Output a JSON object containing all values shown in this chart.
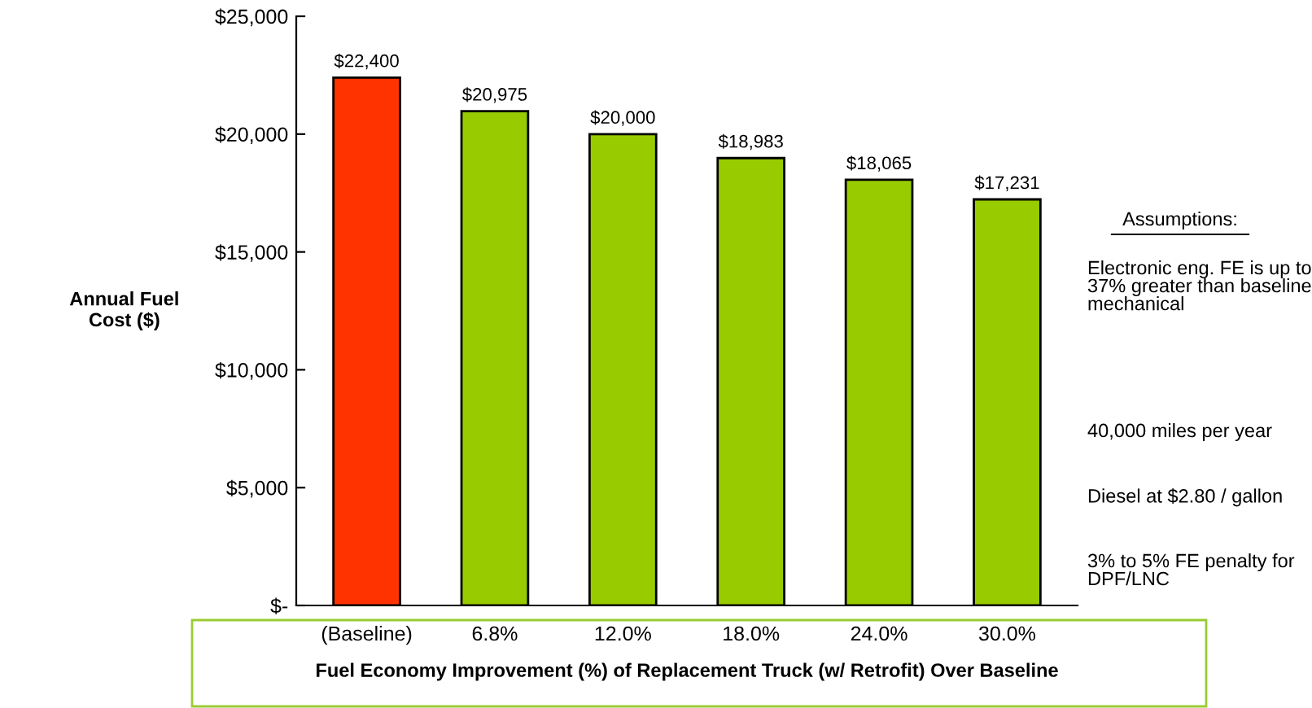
{
  "chart_data": {
    "type": "bar",
    "categories": [
      "(Baseline)",
      "6.8%",
      "12.0%",
      "18.0%",
      "24.0%",
      "30.0%"
    ],
    "values": [
      22400,
      20975,
      20000,
      18983,
      18065,
      17231
    ],
    "colors": [
      "#ff3300",
      "#99cc00",
      "#99cc00",
      "#99cc00",
      "#99cc00",
      "#99cc00"
    ],
    "value_labels": [
      "$22,400",
      "$20,975",
      "$20,000",
      "$18,983",
      "$18,065",
      "$17,231"
    ],
    "ylim": [
      0,
      25000
    ],
    "yticks": [
      {
        "value": 0,
        "label": "$-"
      },
      {
        "value": 5000,
        "label": "$5,000"
      },
      {
        "value": 10000,
        "label": "$10,000"
      },
      {
        "value": 15000,
        "label": "$15,000"
      },
      {
        "value": 20000,
        "label": "$20,000"
      },
      {
        "value": 25000,
        "label": "$25,000"
      }
    ],
    "xlabel": "Fuel Economy Improvement (%) of Replacement Truck (w/ Retrofit) Over Baseline",
    "ylabel": "Annual Fuel\nCost ($)",
    "annotations": [
      "Assumptions:",
      "Electronic eng. FE is up to\n37% greater than baseline\nmechanical",
      "40,000 miles per year",
      "Diesel at $2.80 / gallon",
      "3% to 5% FE penalty for\nDPF/LNC"
    ],
    "grid": false
  }
}
